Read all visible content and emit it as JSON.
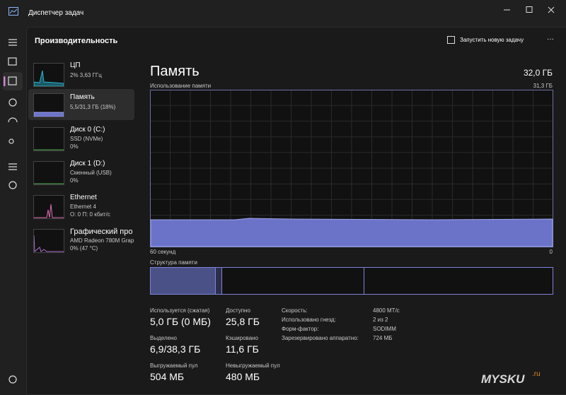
{
  "window": {
    "title": "Диспетчер задач"
  },
  "header": {
    "title": "Производительность",
    "action": "Запустить новую задачу"
  },
  "sidebar": [
    {
      "name": "ЦП",
      "detail": "2% 3,63 ГГц"
    },
    {
      "name": "Память",
      "detail": "5,5/31,3 ГБ (18%)"
    },
    {
      "name": "Диск 0 (C:)",
      "detail": "SSD (NVMe)",
      "value": "0%"
    },
    {
      "name": "Диск 1 (D:)",
      "detail": "Сменный (USB)",
      "value": "0%"
    },
    {
      "name": "Ethernet",
      "detail": "Ethernet 4",
      "value": "О: 0 П: 0 кбит/с"
    },
    {
      "name": "Графический про",
      "detail": "AMD Radeon 780M Grap",
      "value": "0% (47 °C)"
    }
  ],
  "memory": {
    "title": "Память",
    "capacity": "32,0 ГБ",
    "graph_label": "Использование памяти",
    "graph_max": "31,3 ГБ",
    "graph_left": "60 секунд",
    "graph_right": "0",
    "structure_label": "Структура памяти",
    "stats": [
      {
        "label": "Используется (сжатая)",
        "value": "5,0 ГБ (0 МБ)"
      },
      {
        "label": "Доступно",
        "value": "25,8 ГБ"
      },
      {
        "label": "Выделено",
        "value": "6,9/38,3 ГБ"
      },
      {
        "label": "Кэшировано",
        "value": "11,6 ГБ"
      },
      {
        "label": "Выгружаемый пул",
        "value": "504 МБ"
      },
      {
        "label": "Невыгружаемый пул",
        "value": "480 МБ"
      }
    ],
    "specs": [
      {
        "label": "Скорость:",
        "value": "4800 МТ/с"
      },
      {
        "label": "Использовано гнезд:",
        "value": "2 из 2"
      },
      {
        "label": "Форм-фактор:",
        "value": "SODIMM"
      },
      {
        "label": "Зарезервировано аппаратно:",
        "value": "724 МБ"
      }
    ]
  },
  "watermark": {
    "brand": "MYSKU",
    "suffix": ".ru"
  }
}
